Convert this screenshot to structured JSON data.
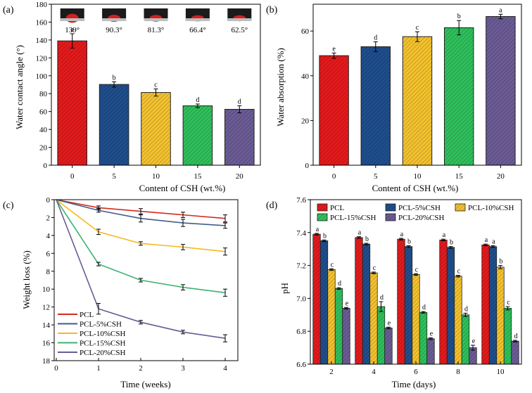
{
  "chart_data": [
    {
      "panel": "(a)",
      "type": "bar",
      "xlabel": "Content of CSH (wt.%)",
      "ylabel": "Water contact angle (°)",
      "categories": [
        "0",
        "5",
        "10",
        "15",
        "20"
      ],
      "values": [
        139,
        90.3,
        81.3,
        66.4,
        62.5
      ],
      "errors": [
        8,
        3,
        4,
        2,
        4
      ],
      "significance": [
        "a",
        "b",
        "c",
        "d",
        "d"
      ],
      "angle_labels": [
        "139°",
        "90.3°",
        "81.3°",
        "66.4°",
        "62.5°"
      ],
      "ylim": [
        0,
        180
      ],
      "yticks": [
        "0",
        "20",
        "40",
        "60",
        "80",
        "100",
        "120",
        "140",
        "160",
        "180"
      ],
      "colors": [
        "#e31a1c",
        "#1f4e8c",
        "#f2c12e",
        "#2fbf5b",
        "#6b5b95"
      ]
    },
    {
      "panel": "(b)",
      "type": "bar",
      "xlabel": "Content of CSH (wt.%)",
      "ylabel": "Water absorption (%)",
      "categories": [
        "0",
        "5",
        "10",
        "15",
        "20"
      ],
      "values": [
        49,
        53,
        57.5,
        61.5,
        66.5
      ],
      "errors": [
        1.2,
        2.2,
        2.2,
        3.2,
        1
      ],
      "significance": [
        "e",
        "d",
        "c",
        "b",
        "a"
      ],
      "ylim": [
        0,
        72
      ],
      "yticks": [
        "0",
        "20",
        "40",
        "60"
      ],
      "colors": [
        "#e31a1c",
        "#1f4e8c",
        "#f2c12e",
        "#2fbf5b",
        "#6b5b95"
      ]
    },
    {
      "panel": "(c)",
      "type": "line",
      "xlabel": "Time (weeks)",
      "ylabel": "Weight loss (%)",
      "x": [
        0,
        1,
        2,
        3,
        4
      ],
      "xticks": [
        "0",
        "1",
        "2",
        "3",
        "4"
      ],
      "ylim": [
        0,
        18
      ],
      "yinverted": true,
      "yticks": [
        "0",
        "2",
        "4",
        "6",
        "8",
        "10",
        "12",
        "14",
        "16",
        "18"
      ],
      "legend_position": "bottom-left",
      "series": [
        {
          "name": "PCL",
          "color": "#d62a1e",
          "values": [
            0,
            0.9,
            1.3,
            1.7,
            2.1
          ],
          "errors": [
            0,
            0.2,
            0.3,
            0.3,
            0.4
          ]
        },
        {
          "name": "PCL-5%CSH",
          "color": "#3f5e8c",
          "values": [
            0,
            1.2,
            2.1,
            2.6,
            2.9
          ],
          "errors": [
            0,
            0.2,
            0.4,
            0.4,
            0.3
          ]
        },
        {
          "name": "PCL-10%CSH",
          "color": "#f5b921",
          "values": [
            0,
            3.6,
            4.9,
            5.3,
            5.8
          ],
          "errors": [
            0,
            0.3,
            0.2,
            0.3,
            0.4
          ]
        },
        {
          "name": "PCL-15%CSH",
          "color": "#3cb371",
          "values": [
            0,
            7.2,
            9.0,
            9.8,
            10.4
          ],
          "errors": [
            0,
            0.2,
            0.2,
            0.3,
            0.4
          ]
        },
        {
          "name": "PCL-20%CSH",
          "color": "#6b5b95",
          "values": [
            0,
            12.2,
            13.7,
            14.8,
            15.5
          ],
          "errors": [
            0,
            0.6,
            0.2,
            0.2,
            0.4
          ]
        }
      ]
    },
    {
      "panel": "(d)",
      "type": "bar",
      "xlabel": "Time (days)",
      "ylabel": "pH",
      "categories": [
        "2",
        "4",
        "6",
        "8",
        "10"
      ],
      "ylim": [
        6.6,
        7.6
      ],
      "yticks": [
        "6.6",
        "6.8",
        "7.0",
        "7.2",
        "7.4",
        "7.6"
      ],
      "legend_position": "top",
      "series": [
        {
          "name": "PCL",
          "color": "#e31a1c",
          "values": [
            7.39,
            7.37,
            7.36,
            7.355,
            7.325
          ],
          "errors": [
            0.005,
            0.005,
            0.005,
            0.005,
            0.005
          ],
          "significance": [
            "a",
            "a",
            "a",
            "a",
            "a"
          ]
        },
        {
          "name": "PCL-5%CSH",
          "color": "#1f4e8c",
          "values": [
            7.35,
            7.33,
            7.315,
            7.31,
            7.315
          ],
          "errors": [
            0.005,
            0.005,
            0.005,
            0.005,
            0.005
          ],
          "significance": [
            "b",
            "b",
            "b",
            "b",
            "a"
          ]
        },
        {
          "name": "PCL-10%CSH",
          "color": "#f2c12e",
          "values": [
            7.175,
            7.155,
            7.145,
            7.135,
            7.19
          ],
          "errors": [
            0.005,
            0.005,
            0.005,
            0.005,
            0.01
          ],
          "significance": [
            "c",
            "c",
            "c",
            "c",
            "b"
          ]
        },
        {
          "name": "PCL-15%CSH",
          "color": "#2fbf5b",
          "values": [
            7.06,
            6.95,
            6.915,
            6.9,
            6.94
          ],
          "errors": [
            0.005,
            0.03,
            0.005,
            0.01,
            0.01
          ],
          "significance": [
            "d",
            "d",
            "d",
            "d",
            "c"
          ]
        },
        {
          "name": "PCL-20%CSH",
          "color": "#6b5b95",
          "values": [
            6.94,
            6.82,
            6.755,
            6.7,
            6.74
          ],
          "errors": [
            0.005,
            0.005,
            0.005,
            0.015,
            0.005
          ],
          "significance": [
            "e",
            "e",
            "e",
            "e",
            "d"
          ]
        }
      ]
    }
  ]
}
